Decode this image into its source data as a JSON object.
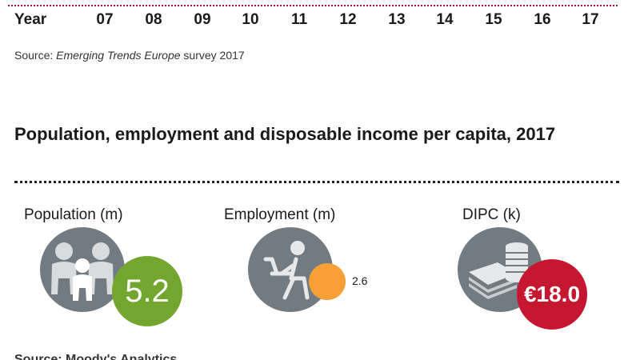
{
  "year_axis": {
    "label": "Year",
    "ticks": [
      "07",
      "08",
      "09",
      "10",
      "11",
      "12",
      "13",
      "14",
      "15",
      "16",
      "17"
    ]
  },
  "source_top": {
    "prefix": "Source: ",
    "italic": "Emerging Trends Europe",
    "suffix": " survey 2017"
  },
  "section": {
    "title": "Population, employment and disposable income per capita, 2017"
  },
  "stats": {
    "population": {
      "label": "Population (m)",
      "value": "5.2",
      "icon": "family-icon",
      "color": "#72a62e"
    },
    "employment": {
      "label": "Employment (m)",
      "value": "2.6",
      "icon": "person-at-desk-icon",
      "color": "#f7a038"
    },
    "dipc": {
      "label": "DIPC (k)",
      "value": "€18.0",
      "icon": "coins-and-banknotes-icon",
      "color": "#c61730"
    }
  },
  "colors": {
    "icon_circle": "#737b82",
    "accent_rule": "#a0145a"
  },
  "footer": {
    "source_partial": "Source: Moody's Analytics"
  }
}
